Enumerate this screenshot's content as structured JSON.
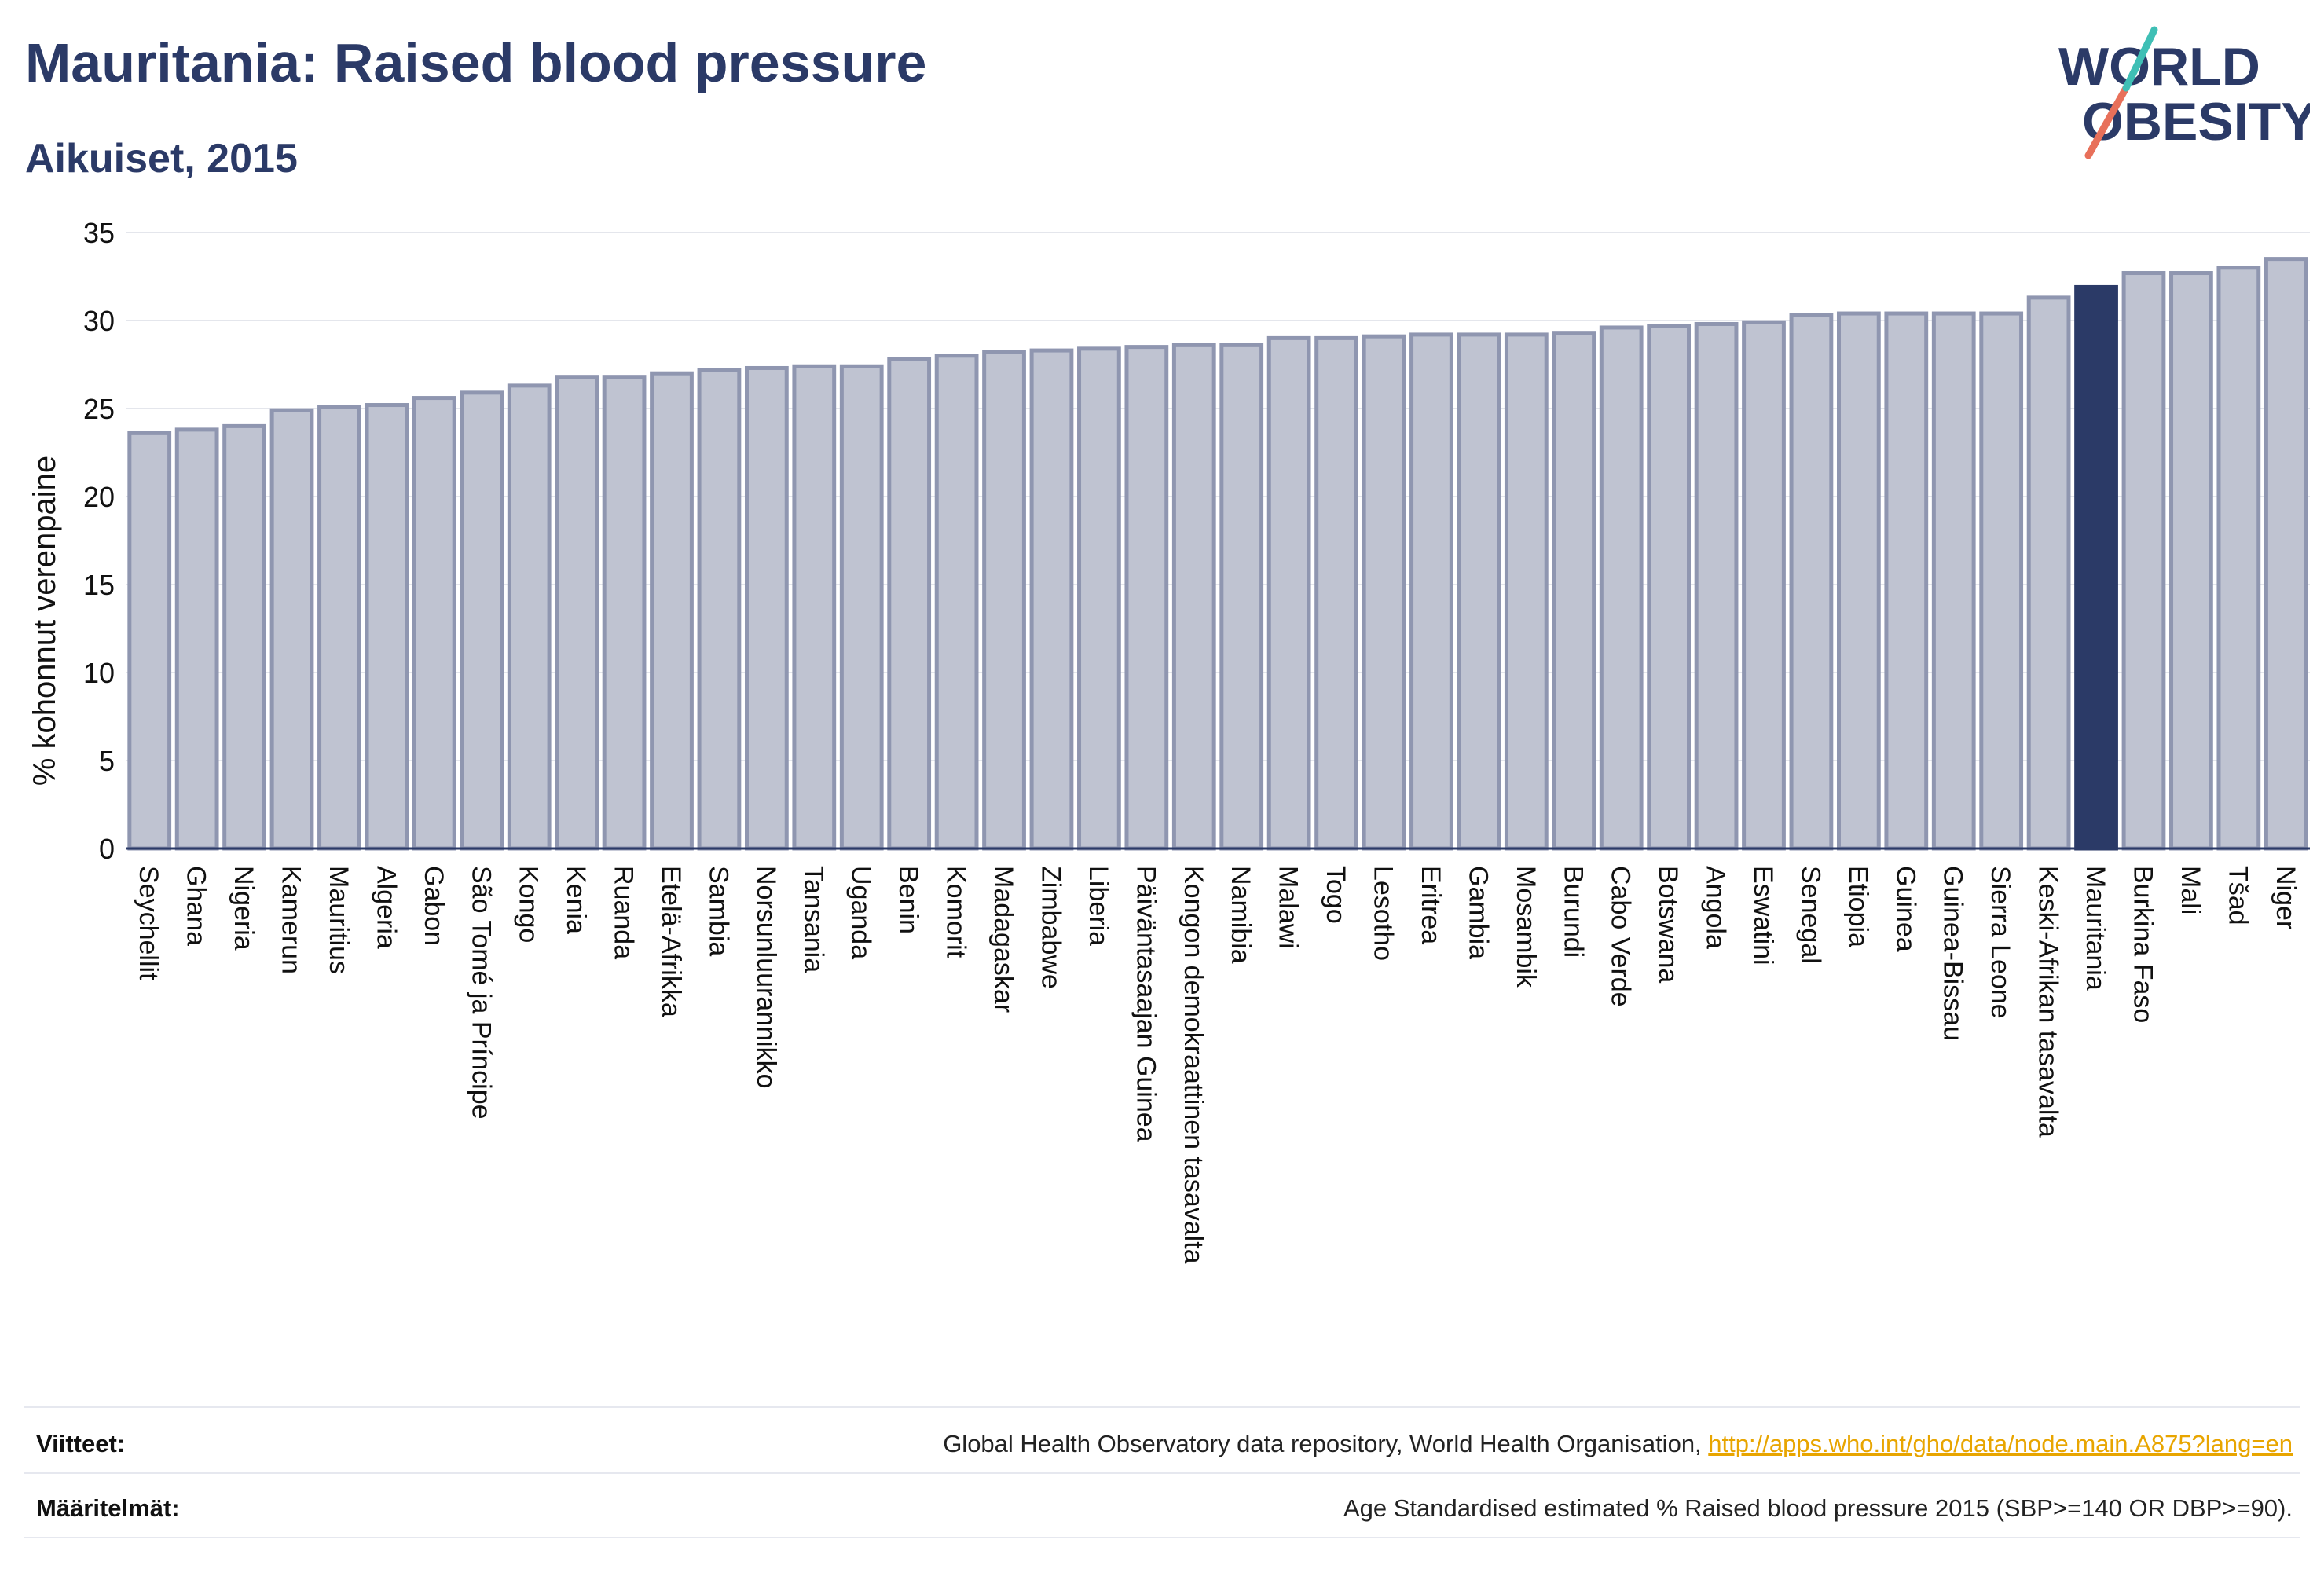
{
  "header": {
    "title": "Mauritania: Raised blood pressure",
    "subtitle": "Aikuiset, 2015"
  },
  "logo": {
    "line1": "WORLD",
    "line2": "OBESITY"
  },
  "chart_data": {
    "type": "bar",
    "title": "Mauritania: Raised blood pressure",
    "subtitle": "Aikuiset, 2015",
    "ylabel": "% kohonnut verenpaine",
    "xlabel": "",
    "ylim": [
      0,
      35
    ],
    "yticks": [
      0,
      5,
      10,
      15,
      20,
      25,
      30,
      35
    ],
    "grid": true,
    "highlight": "Mauritania",
    "colors": {
      "bar": "#bfc3d1",
      "bar_edge": "#8f96b0",
      "highlight": "#2b3a67",
      "grid": "#e4e6ec",
      "axis": "#2b3a67"
    },
    "categories": [
      "Seychellit",
      "Ghana",
      "Nigeria",
      "Kamerun",
      "Mauritius",
      "Algeria",
      "Gabon",
      "São Tomé ja Príncipe",
      "Kongo",
      "Kenia",
      "Ruanda",
      "Etelä-Afrikka",
      "Sambia",
      "Norsunluurannikko",
      "Tansania",
      "Uganda",
      "Benin",
      "Komorit",
      "Madagaskar",
      "Zimbabwe",
      "Liberia",
      "Päiväntasaajan Guinea",
      "Kongon demokraattinen tasavalta",
      "Namibia",
      "Malawi",
      "Togo",
      "Lesotho",
      "Eritrea",
      "Gambia",
      "Mosambik",
      "Burundi",
      "Cabo Verde",
      "Botswana",
      "Angola",
      "Eswatini",
      "Senegal",
      "Etiopia",
      "Guinea",
      "Guinea-Bissau",
      "Sierra Leone",
      "Keski-Afrikan tasavalta",
      "Mauritania",
      "Burkina Faso",
      "Mali",
      "Tšad",
      "Niger"
    ],
    "values": [
      23.6,
      23.8,
      24.0,
      24.9,
      25.1,
      25.2,
      25.6,
      25.9,
      26.3,
      26.8,
      26.8,
      27.0,
      27.2,
      27.3,
      27.4,
      27.4,
      27.8,
      28.0,
      28.2,
      28.3,
      28.4,
      28.5,
      28.6,
      28.6,
      29.0,
      29.0,
      29.1,
      29.2,
      29.2,
      29.2,
      29.3,
      29.6,
      29.7,
      29.8,
      29.9,
      30.3,
      30.4,
      30.4,
      30.4,
      30.4,
      31.3,
      31.9,
      32.7,
      32.7,
      33.0,
      33.5
    ]
  },
  "footer": {
    "references_label": "Viitteet:",
    "references_text": "Global Health Observatory data repository, World Health Organisation, ",
    "references_link": "http://apps.who.int/gho/data/node.main.A875?lang=en",
    "definitions_label": "Määritelmät:",
    "definitions_text": "Age Standardised estimated % Raised blood pressure 2015 (SBP>=140 OR DBP>=90)."
  }
}
